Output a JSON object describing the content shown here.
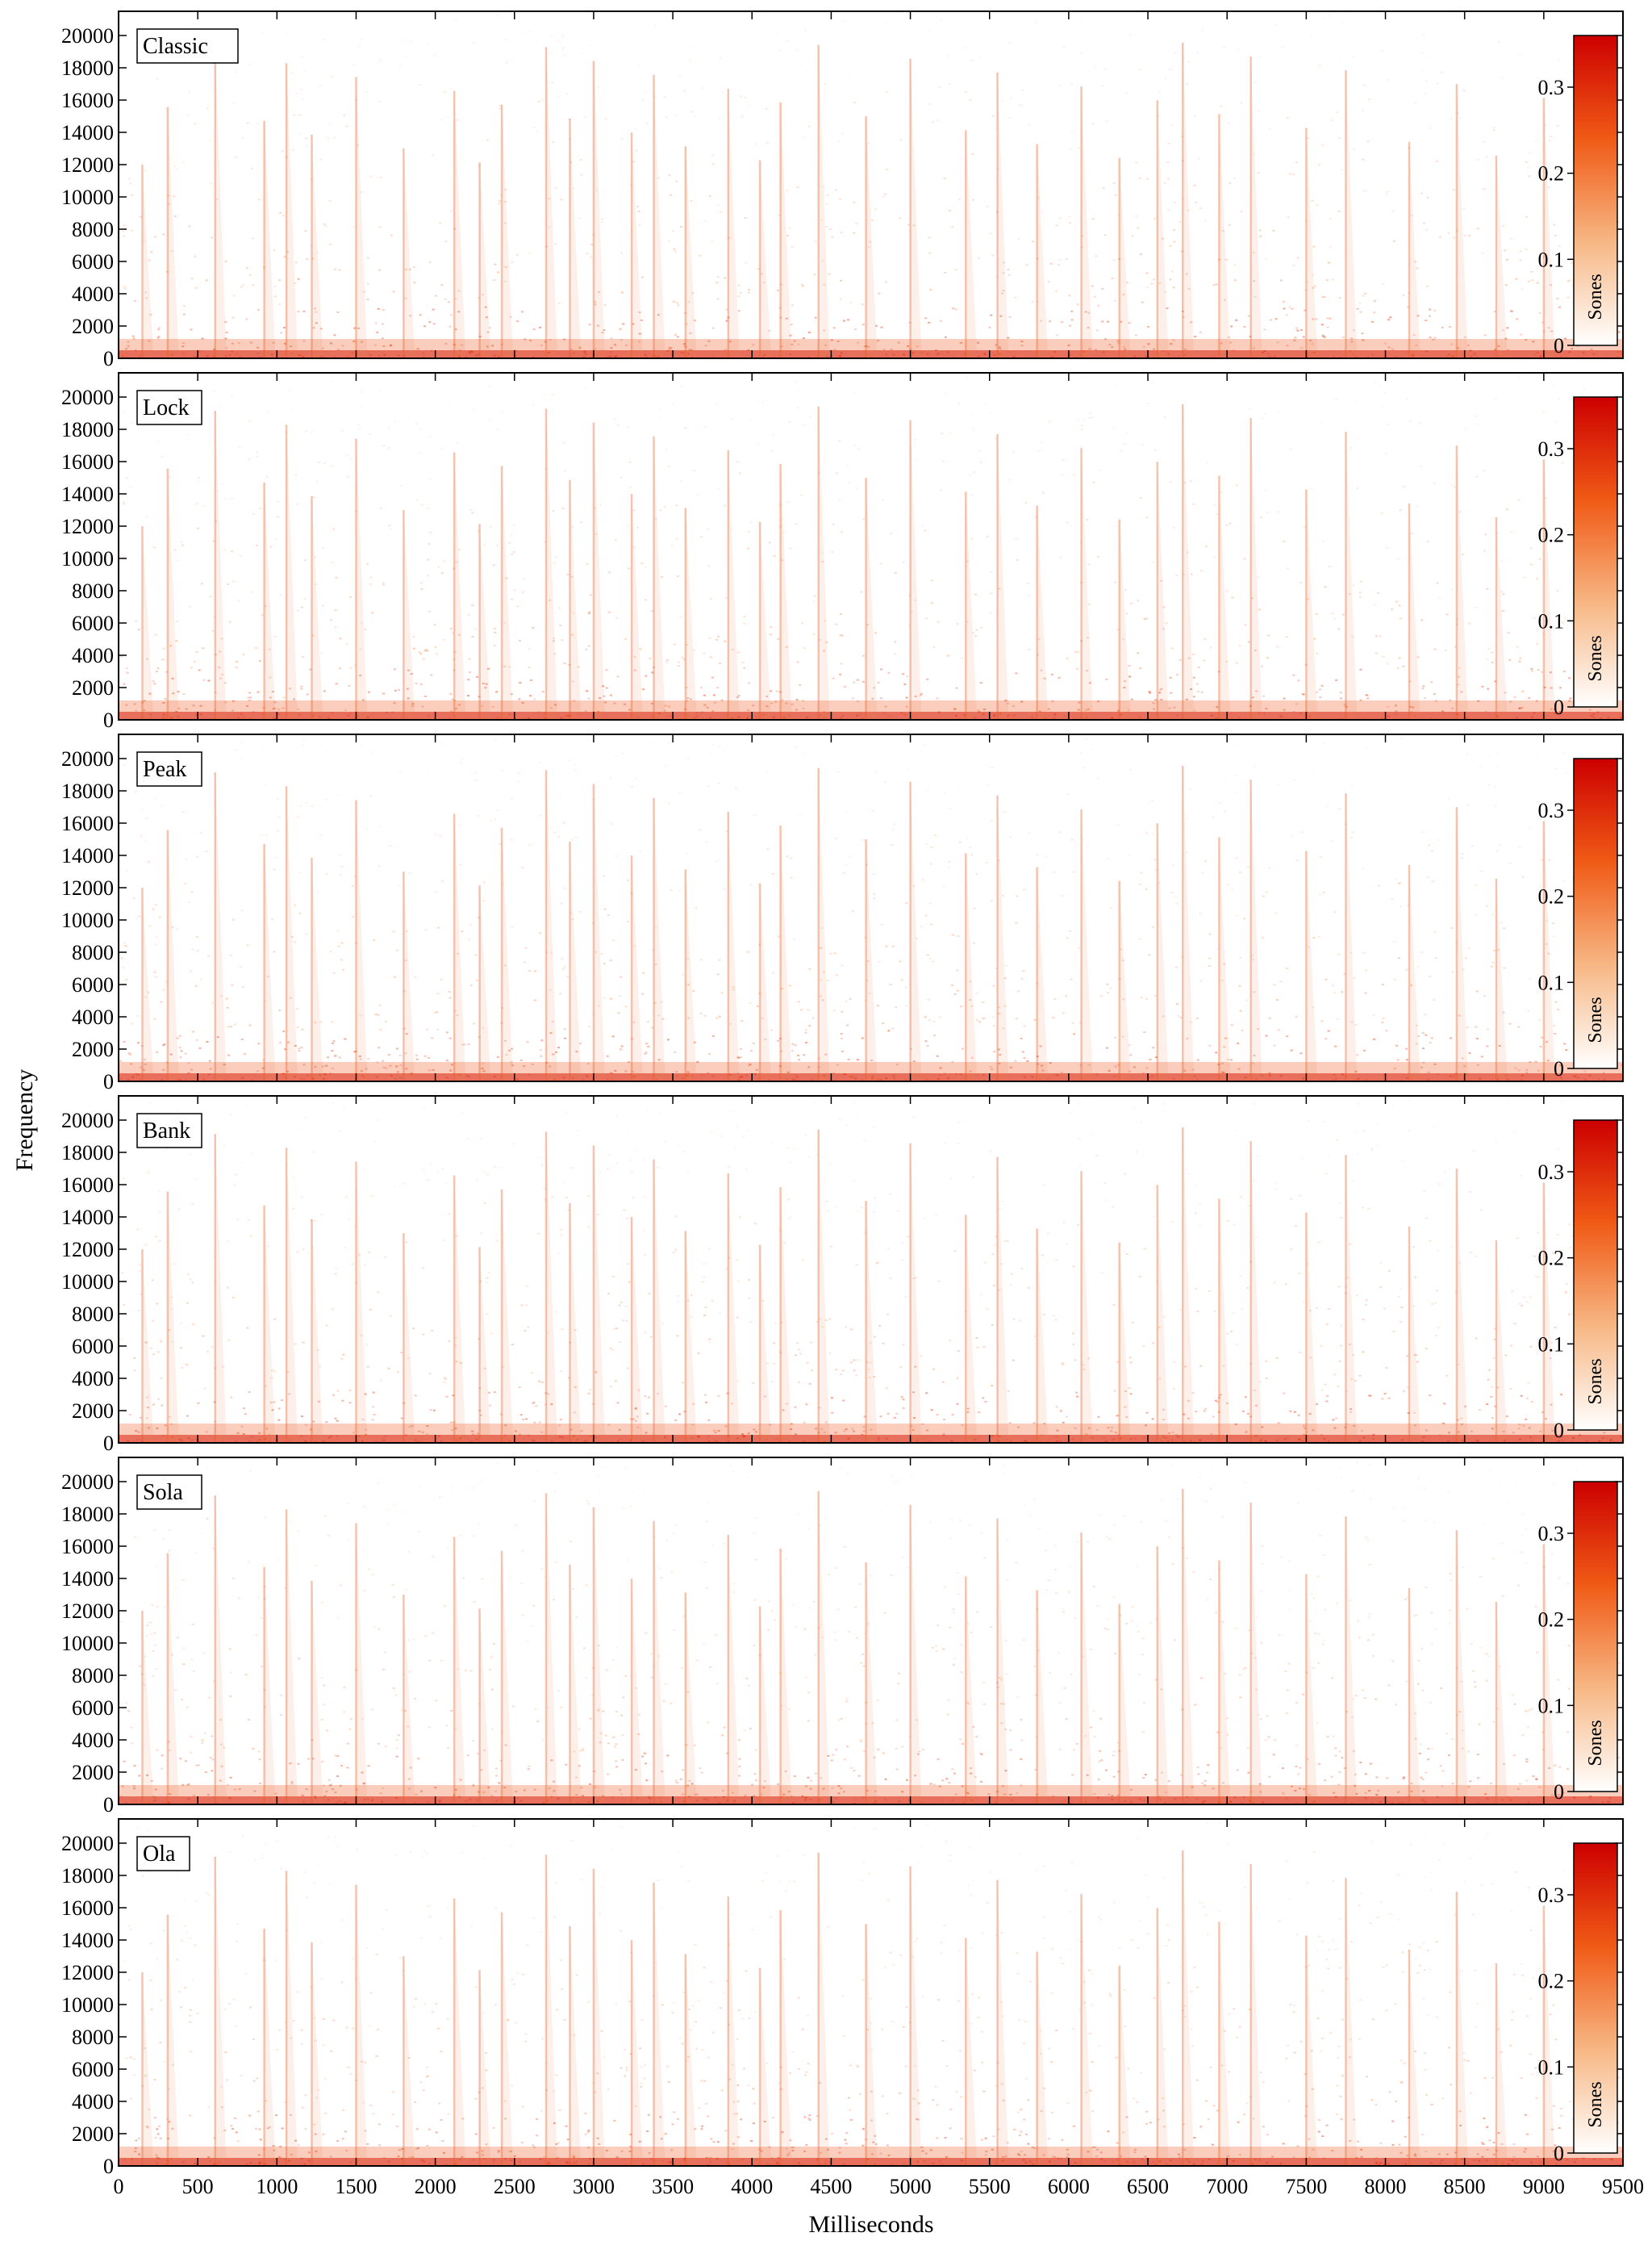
{
  "chart_data": {
    "type": "heatmap",
    "xlabel": "Milliseconds",
    "ylabel": "Frequency",
    "xlim": [
      0,
      9500
    ],
    "ylim": [
      0,
      21500
    ],
    "x_ticks": [
      0,
      500,
      1000,
      1500,
      2000,
      2500,
      3000,
      3500,
      4000,
      4500,
      5000,
      5500,
      6000,
      6500,
      7000,
      7500,
      8000,
      8500,
      9000,
      9500
    ],
    "y_ticks": [
      0,
      2000,
      4000,
      6000,
      8000,
      10000,
      12000,
      14000,
      16000,
      18000,
      20000
    ],
    "colorbar": {
      "label": "Sones",
      "range": [
        0,
        0.36
      ],
      "ticks": [
        0,
        0.1,
        0.2,
        0.3
      ],
      "tick_labels": [
        "0",
        "0.1",
        "0.2",
        "0.3"
      ],
      "colors": [
        "#ffffff",
        "#f7b784",
        "#f05a16",
        "#cc0000"
      ]
    },
    "onsets_ms": [
      150,
      310,
      610,
      920,
      1060,
      1220,
      1500,
      1800,
      2120,
      2280,
      2420,
      2700,
      2850,
      3000,
      3240,
      3380,
      3580,
      3850,
      4050,
      4180,
      4420,
      4720,
      5000,
      5350,
      5550,
      5800,
      6080,
      6320,
      6560,
      6720,
      6950,
      7150,
      7500,
      7750,
      8150,
      8450,
      8700,
      9000
    ],
    "panels": [
      {
        "name": "Classic"
      },
      {
        "name": "Lock"
      },
      {
        "name": "Peak"
      },
      {
        "name": "Bank"
      },
      {
        "name": "Sola"
      },
      {
        "name": "Ola"
      }
    ]
  }
}
